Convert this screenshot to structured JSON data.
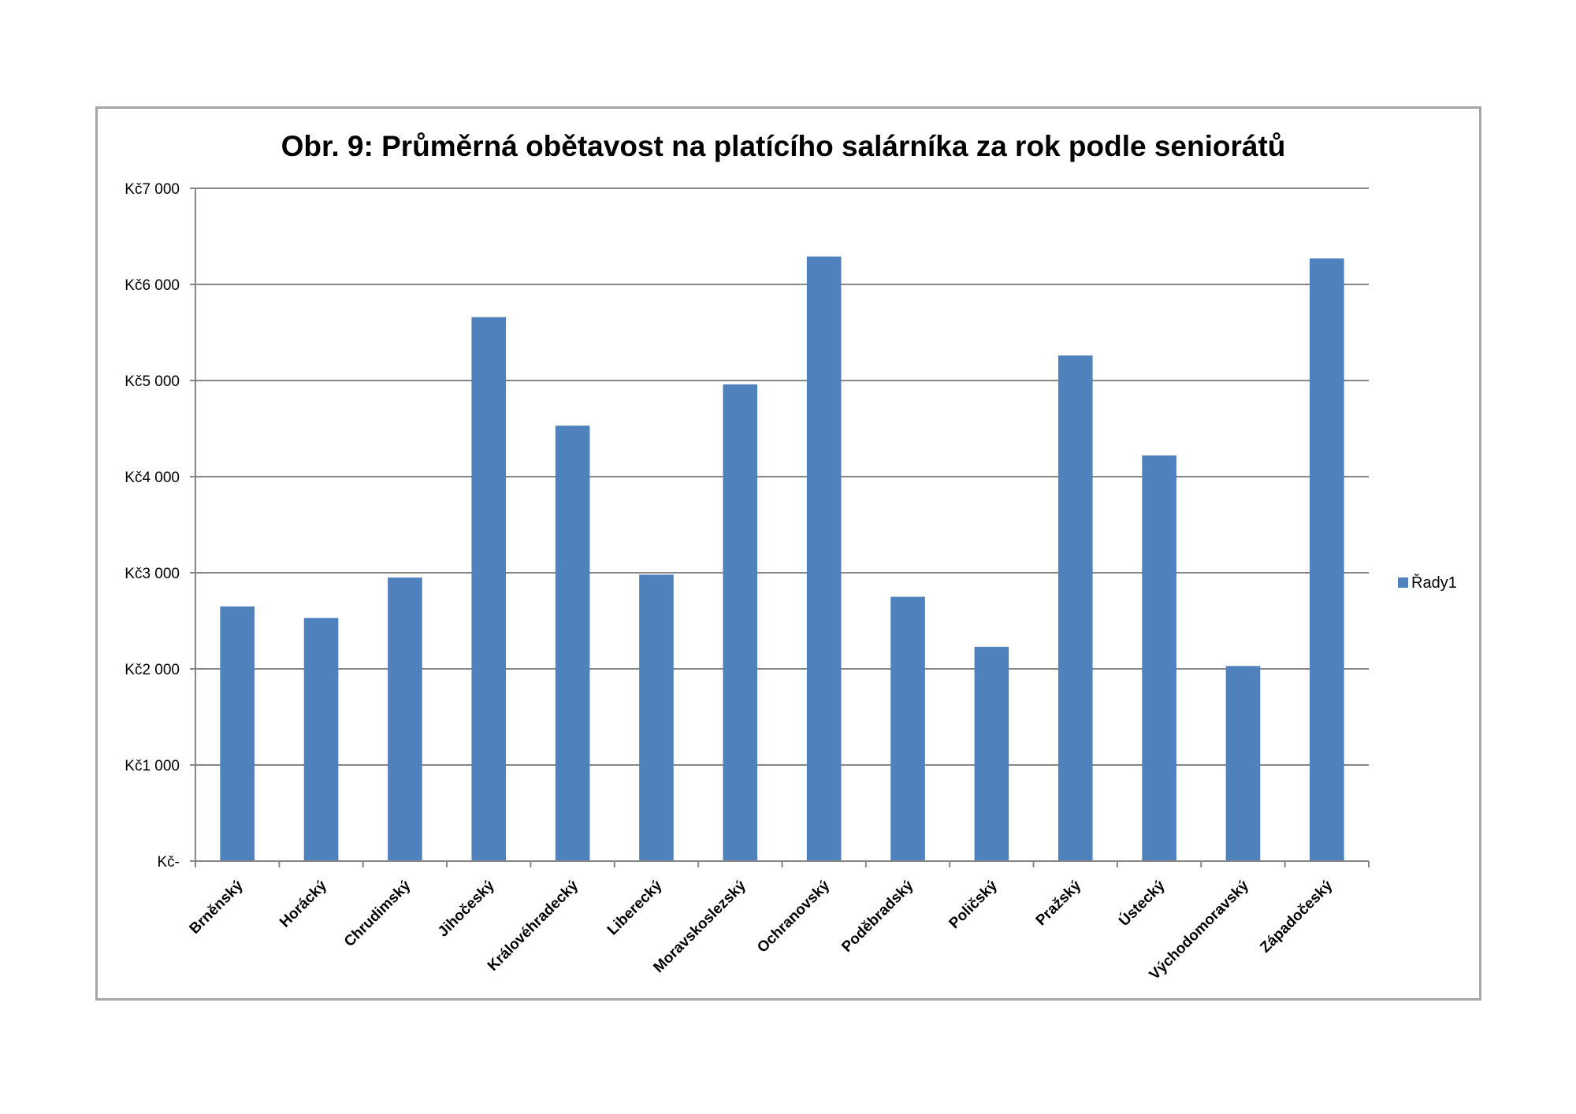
{
  "chart_data": {
    "type": "bar",
    "title": "Obr. 9: Průměrná obětavost na platícího salárníka za rok podle seniorátů",
    "xlabel": "",
    "ylabel": "",
    "ylim": [
      0,
      7000
    ],
    "grid": true,
    "legend_position": "right",
    "color": "#4f81bd",
    "yticks": [
      0,
      1000,
      2000,
      3000,
      4000,
      5000,
      6000,
      7000
    ],
    "ytick_labels": [
      "Kč-",
      "Kč1 000",
      "Kč2 000",
      "Kč3 000",
      "Kč4 000",
      "Kč5 000",
      "Kč6 000",
      "Kč7 000"
    ],
    "categories": [
      "Brněnský",
      "Horácký",
      "Chrudimský",
      "Jihočeský",
      "Královéhradecký",
      "Liberecký",
      "Moravskoslezský",
      "Ochranovský",
      "Poděbradský",
      "Poličský",
      "Pražský",
      "Ústecký",
      "Východomoravský",
      "Západočeský"
    ],
    "series": [
      {
        "name": "Řady1",
        "values": [
          2650,
          2530,
          2950,
          5660,
          4530,
          2980,
          4960,
          6290,
          2750,
          2230,
          5260,
          4220,
          2030,
          6270
        ]
      }
    ]
  }
}
